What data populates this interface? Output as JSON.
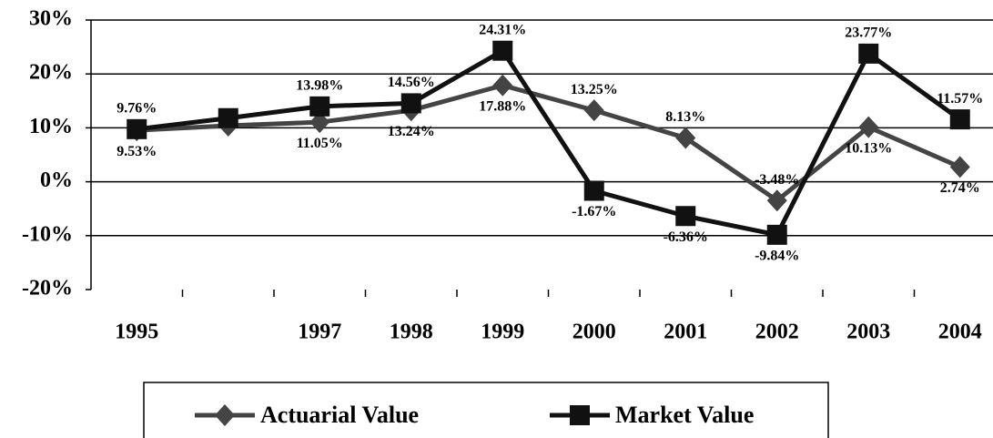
{
  "chart_data": {
    "type": "line",
    "categories": [
      "1995",
      null,
      "1997",
      "1998",
      "1999",
      "2000",
      "2001",
      "2002",
      "2003",
      "2004"
    ],
    "series": [
      {
        "name": "Actuarial Value",
        "color": "#444444",
        "marker": "diamond",
        "values": [
          9.53,
          10.4,
          11.05,
          13.24,
          17.88,
          13.25,
          8.13,
          -3.48,
          10.13,
          2.74
        ],
        "value_labels": [
          "9.53%",
          null,
          "11.05%",
          "13.24%",
          "17.88%",
          "13.25%",
          "8.13%",
          "-3.48%",
          "10.13%",
          "2.74%"
        ]
      },
      {
        "name": "Market Value",
        "color": "#111111",
        "marker": "square",
        "values": [
          9.76,
          11.8,
          13.98,
          14.56,
          24.31,
          -1.67,
          -6.36,
          -9.84,
          23.77,
          11.57
        ],
        "value_labels": [
          "9.76%",
          null,
          "13.98%",
          "14.56%",
          "24.31%",
          "-1.67%",
          "-6.36%",
          "-9.84%",
          "23.77%",
          "11.57%"
        ]
      }
    ],
    "ylim": [
      -20,
      30
    ],
    "yticks": [
      {
        "value": -20,
        "label": "-20%"
      },
      {
        "value": -10,
        "label": "-10%"
      },
      {
        "value": 0,
        "label": "0%"
      },
      {
        "value": 10,
        "label": "10%"
      },
      {
        "value": 20,
        "label": "20%"
      },
      {
        "value": 30,
        "label": "30%"
      }
    ],
    "grid": true,
    "legend": "bottom"
  }
}
